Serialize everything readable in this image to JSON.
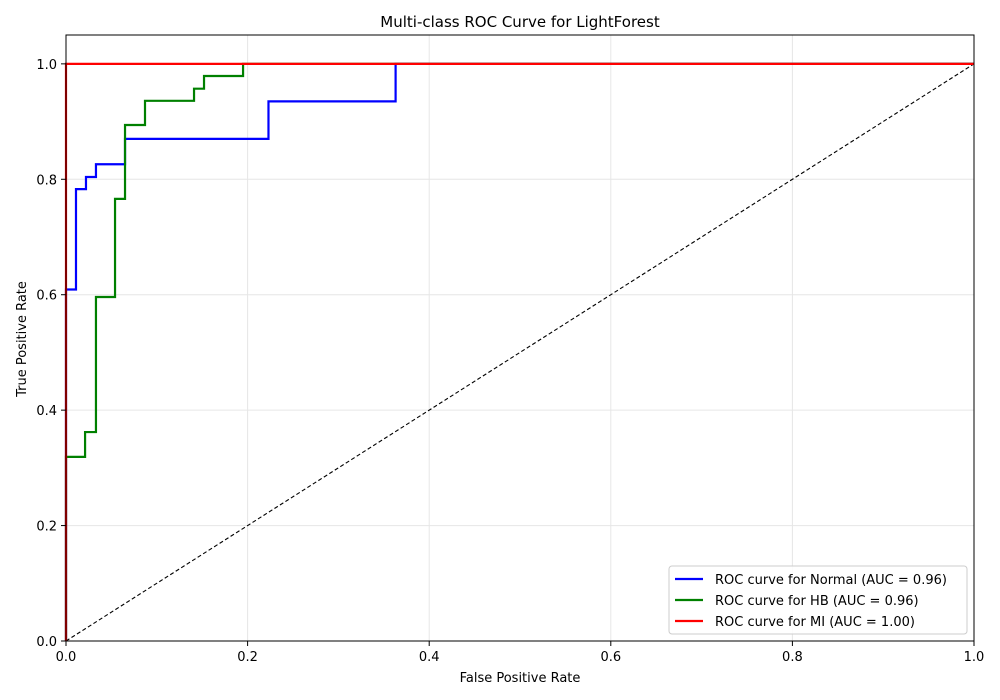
{
  "chart_data": {
    "type": "line",
    "title": "Multi-class ROC Curve for LightForest",
    "xlabel": "False Positive Rate",
    "ylabel": "True Positive Rate",
    "xlim": [
      0.0,
      1.0
    ],
    "ylim": [
      0.0,
      1.05
    ],
    "xticks": [
      0.0,
      0.2,
      0.4,
      0.6,
      0.8,
      1.0
    ],
    "yticks": [
      0.0,
      0.2,
      0.4,
      0.6,
      0.8,
      1.0
    ],
    "xtick_labels": [
      "0.0",
      "0.2",
      "0.4",
      "0.6",
      "0.8",
      "1.0"
    ],
    "ytick_labels": [
      "0.0",
      "0.2",
      "0.4",
      "0.6",
      "0.8",
      "1.0"
    ],
    "grid": true,
    "legend_position": "bottom-right",
    "series": [
      {
        "name": "ROC curve for Normal (AUC = 0.96)",
        "color": "#0000ff",
        "x": [
          0.0,
          0.0,
          0.011,
          0.011,
          0.022,
          0.022,
          0.033,
          0.033,
          0.065,
          0.065,
          0.223,
          0.223,
          0.363,
          0.363,
          1.0
        ],
        "y": [
          0.0,
          0.609,
          0.609,
          0.783,
          0.783,
          0.804,
          0.804,
          0.826,
          0.826,
          0.87,
          0.87,
          0.935,
          0.935,
          1.0,
          1.0
        ]
      },
      {
        "name": "ROC curve for HB (AUC = 0.96)",
        "color": "#008000",
        "x": [
          0.0,
          0.0,
          0.021,
          0.021,
          0.033,
          0.033,
          0.054,
          0.054,
          0.065,
          0.065,
          0.087,
          0.087,
          0.141,
          0.141,
          0.152,
          0.152,
          0.195,
          0.195,
          1.0
        ],
        "y": [
          0.0,
          0.319,
          0.319,
          0.362,
          0.362,
          0.596,
          0.596,
          0.766,
          0.766,
          0.894,
          0.894,
          0.936,
          0.936,
          0.957,
          0.957,
          0.979,
          0.979,
          1.0,
          1.0
        ]
      },
      {
        "name": "ROC curve for MI (AUC = 1.00)",
        "color": "#ff0000",
        "x": [
          0.0,
          0.0,
          1.0
        ],
        "y": [
          0.0,
          1.0,
          1.0
        ]
      }
    ],
    "reference_line": {
      "color": "#000000",
      "x": [
        0.0,
        1.0
      ],
      "y": [
        0.0,
        1.0
      ]
    }
  }
}
